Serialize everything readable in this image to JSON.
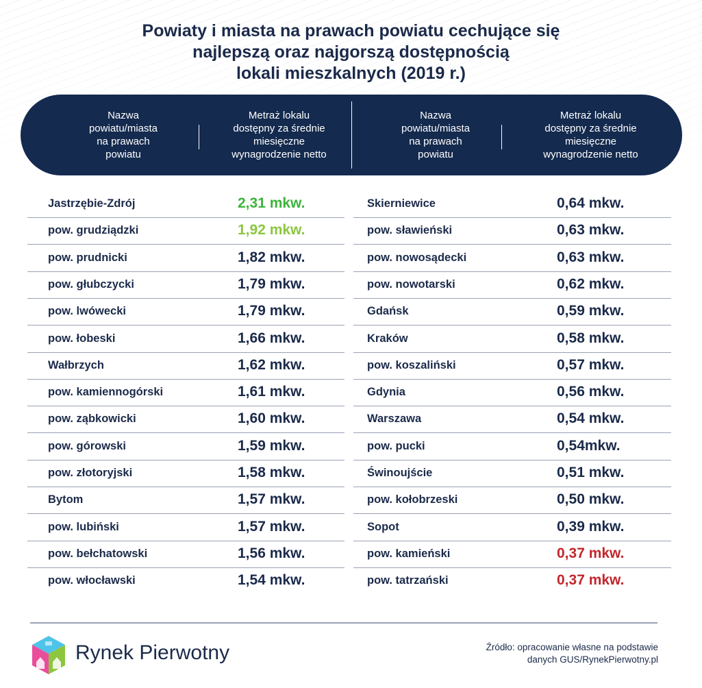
{
  "title": {
    "line1": "Powiaty i miasta na prawach powiatu cechujące się",
    "line2": "najlepszą oraz najgorszą dostępnością",
    "line3": "lokali mieszkalnych (2019 r.)"
  },
  "header": {
    "name_col": [
      "Nazwa",
      "powiatu/miasta",
      "na prawach",
      "powiatu"
    ],
    "value_col": [
      "Metraż lokalu",
      "dostępny za średnie",
      "miesięczne",
      "wynagrodzenie netto"
    ]
  },
  "colors": {
    "navy": "#142a4e",
    "best": "#3db33a",
    "second": "#8cc63f",
    "worst": "#c1272d",
    "text": "#1b2a4a"
  },
  "chart_data": {
    "type": "table",
    "title": "Powiaty i miasta na prawach powiatu cechujące się najlepszą oraz najgorszą dostępnością lokali mieszkalnych (2019 r.)",
    "unit": "mkw.",
    "best": [
      {
        "name": "Jastrzębie-Zdrój",
        "value_label": "2,31 mkw.",
        "value": 2.31
      },
      {
        "name": "pow. grudziądzki",
        "value_label": "1,92 mkw.",
        "value": 1.92
      },
      {
        "name": "pow. prudnicki",
        "value_label": "1,82 mkw.",
        "value": 1.82
      },
      {
        "name": "pow. głubczycki",
        "value_label": "1,79 mkw.",
        "value": 1.79
      },
      {
        "name": "pow. lwówecki",
        "value_label": "1,79 mkw.",
        "value": 1.79
      },
      {
        "name": "pow. łobeski",
        "value_label": "1,66 mkw.",
        "value": 1.66
      },
      {
        "name": "Wałbrzych",
        "value_label": "1,62 mkw.",
        "value": 1.62
      },
      {
        "name": "pow. kamiennogórski",
        "value_label": "1,61 mkw.",
        "value": 1.61
      },
      {
        "name": "pow. ząbkowicki",
        "value_label": "1,60 mkw.",
        "value": 1.6
      },
      {
        "name": "pow. górowski",
        "value_label": "1,59 mkw.",
        "value": 1.59
      },
      {
        "name": "pow. złotoryjski",
        "value_label": "1,58 mkw.",
        "value": 1.58
      },
      {
        "name": "Bytom",
        "value_label": "1,57 mkw.",
        "value": 1.57
      },
      {
        "name": "pow. lubiński",
        "value_label": "1,57 mkw.",
        "value": 1.57
      },
      {
        "name": "pow. bełchatowski",
        "value_label": "1,56 mkw.",
        "value": 1.56
      },
      {
        "name": "pow. włocławski",
        "value_label": "1,54 mkw.",
        "value": 1.54
      }
    ],
    "worst": [
      {
        "name": "Skierniewice",
        "value_label": "0,64 mkw.",
        "value": 0.64
      },
      {
        "name": "pow. sławieński",
        "value_label": "0,63 mkw.",
        "value": 0.63
      },
      {
        "name": "pow. nowosądecki",
        "value_label": "0,63 mkw.",
        "value": 0.63
      },
      {
        "name": "pow. nowotarski",
        "value_label": "0,62 mkw.",
        "value": 0.62
      },
      {
        "name": "Gdańsk",
        "value_label": "0,59 mkw.",
        "value": 0.59
      },
      {
        "name": "Kraków",
        "value_label": "0,58 mkw.",
        "value": 0.58
      },
      {
        "name": "pow. koszaliński",
        "value_label": "0,57 mkw.",
        "value": 0.57
      },
      {
        "name": "Gdynia",
        "value_label": "0,56 mkw.",
        "value": 0.56
      },
      {
        "name": "Warszawa",
        "value_label": "0,54 mkw.",
        "value": 0.54
      },
      {
        "name": "pow. pucki",
        "value_label": "0,54mkw.",
        "value": 0.54
      },
      {
        "name": "Świnoujście",
        "value_label": "0,51 mkw.",
        "value": 0.51
      },
      {
        "name": "pow. kołobrzeski",
        "value_label": "0,50 mkw.",
        "value": 0.5
      },
      {
        "name": "Sopot",
        "value_label": "0,39 mkw.",
        "value": 0.39
      },
      {
        "name": "pow. kamieński",
        "value_label": "0,37 mkw.",
        "value": 0.37
      },
      {
        "name": "pow. tatrzański",
        "value_label": "0,37 mkw.",
        "value": 0.37
      }
    ]
  },
  "footer": {
    "brand": "Rynek Pierwotny",
    "source_line1": "Źródło: opracowanie własne na podstawie",
    "source_line2": "danych GUS/RynekPierwotny.pl"
  }
}
